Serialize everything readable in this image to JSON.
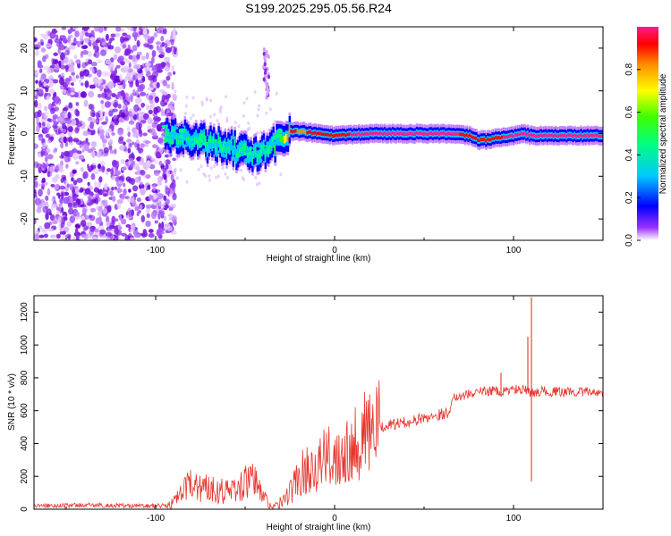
{
  "title": "S199.2025.295.05.56.R24",
  "colors": {
    "snr_line": "#e8352e",
    "frame": "#000000",
    "scatter": "#8a2be2"
  },
  "chart_data": [
    {
      "type": "heatmap",
      "title": "S199.2025.295.05.56.R24",
      "xlabel": "Height of straight line (km)",
      "ylabel": "Frequency (Hz)",
      "xlim": [
        -168,
        150
      ],
      "ylim": [
        -25,
        25
      ],
      "xticks": [
        -100,
        0,
        100
      ],
      "yticks": [
        -20,
        -10,
        0,
        10,
        20
      ],
      "colorbar": {
        "label": "Normalized spectral amplitude",
        "range": [
          0,
          1
        ],
        "ticks": [
          "0.0",
          "0.2",
          "0.4",
          "0.6",
          "0.8"
        ],
        "tick_values": [
          0.0,
          0.2,
          0.4,
          0.6,
          0.8
        ]
      },
      "noise_region_x": [
        -168,
        -95
      ],
      "ridge": {
        "x": [
          -95,
          -85,
          -75,
          -65,
          -55,
          -45,
          -38,
          -30,
          -25,
          -20,
          -10,
          0,
          20,
          40,
          60,
          75,
          80,
          85,
          90,
          100,
          105,
          110,
          130,
          150
        ],
        "freq": [
          0,
          -1,
          -2,
          -3,
          -4,
          -5,
          -4,
          -1,
          0.5,
          0.5,
          0,
          -0.5,
          0,
          0,
          0,
          -0.5,
          -1.5,
          -1.5,
          -1,
          -0.5,
          0,
          -0.5,
          -0.5,
          -0.5
        ],
        "amplitude": [
          0.35,
          0.4,
          0.45,
          0.45,
          0.4,
          0.45,
          0.4,
          0.5,
          0.85,
          0.8,
          0.85,
          0.9,
          0.95,
          0.95,
          0.95,
          0.9,
          0.85,
          0.9,
          0.9,
          0.95,
          0.95,
          0.95,
          0.95,
          0.95
        ]
      }
    },
    {
      "type": "line",
      "xlabel": "Height of straight line (km)",
      "ylabel": "SNR (10 * v/v)",
      "xlim": [
        -168,
        150
      ],
      "ylim": [
        0,
        1300
      ],
      "xticks": [
        -100,
        0,
        100
      ],
      "yticks": [
        0,
        200,
        400,
        600,
        800,
        1000,
        1200
      ],
      "series": [
        {
          "name": "SNR",
          "x": [
            -168,
            -140,
            -110,
            -98,
            -92,
            -88,
            -84,
            -80,
            -76,
            -72,
            -68,
            -64,
            -60,
            -56,
            -52,
            -48,
            -44,
            -40,
            -36,
            -32,
            -28,
            -24,
            -20,
            -16,
            -12,
            -8,
            -4,
            0,
            4,
            8,
            12,
            16,
            20,
            25,
            30,
            35,
            40,
            45,
            50,
            55,
            60,
            64,
            65,
            66,
            70,
            75,
            80,
            85,
            90,
            92,
            95,
            100,
            105,
            108,
            110,
            112,
            115,
            120,
            130,
            140,
            150
          ],
          "y": [
            20,
            25,
            20,
            20,
            30,
            60,
            110,
            160,
            140,
            130,
            130,
            120,
            110,
            120,
            140,
            180,
            160,
            80,
            20,
            20,
            60,
            120,
            200,
            240,
            260,
            290,
            310,
            330,
            360,
            390,
            420,
            450,
            480,
            500,
            510,
            520,
            530,
            540,
            555,
            570,
            580,
            590,
            650,
            680,
            690,
            700,
            715,
            720,
            725,
            700,
            720,
            730,
            725,
            720,
            700,
            715,
            720,
            715,
            715,
            715,
            710
          ]
        }
      ],
      "spikes": [
        {
          "x": 93,
          "y": 830
        },
        {
          "x": 108,
          "y": 1050
        },
        {
          "x": 110,
          "y": 1290
        },
        {
          "x": 110,
          "y": 170
        }
      ]
    }
  ]
}
